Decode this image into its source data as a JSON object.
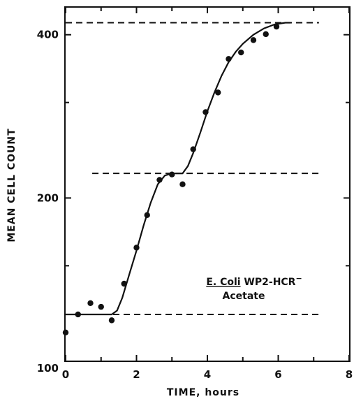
{
  "chart_data": {
    "type": "scatter",
    "xlabel": "TIME, hours",
    "ylabel": "MEAN CELL COUNT",
    "xlim": [
      0,
      8
    ],
    "ylim": [
      100,
      450
    ],
    "y_scale": "log",
    "x_ticks": [
      "0",
      "2",
      "4",
      "6",
      "8"
    ],
    "y_ticks": [
      "100",
      "200",
      "400"
    ],
    "annotation_line1_prefix": "E. Coli",
    "annotation_line1_suffix": " WP2-HCR",
    "annotation_line1_superscript": "−",
    "annotation_line2": "Acetate",
    "points": [
      {
        "x": 0.0,
        "y": 113
      },
      {
        "x": 0.35,
        "y": 122
      },
      {
        "x": 0.7,
        "y": 128
      },
      {
        "x": 1.0,
        "y": 126
      },
      {
        "x": 1.3,
        "y": 119
      },
      {
        "x": 1.65,
        "y": 139
      },
      {
        "x": 2.0,
        "y": 162
      },
      {
        "x": 2.3,
        "y": 186
      },
      {
        "x": 2.65,
        "y": 216
      },
      {
        "x": 3.0,
        "y": 221
      },
      {
        "x": 3.3,
        "y": 212
      },
      {
        "x": 3.6,
        "y": 246
      },
      {
        "x": 3.95,
        "y": 288
      },
      {
        "x": 4.3,
        "y": 313
      },
      {
        "x": 4.6,
        "y": 361
      },
      {
        "x": 4.95,
        "y": 371
      },
      {
        "x": 5.3,
        "y": 391
      },
      {
        "x": 5.65,
        "y": 401
      },
      {
        "x": 5.95,
        "y": 414
      }
    ],
    "fit_curve": [
      {
        "x": 0.0,
        "y": 122
      },
      {
        "x": 1.3,
        "y": 122
      },
      {
        "x": 1.45,
        "y": 124
      },
      {
        "x": 1.6,
        "y": 131
      },
      {
        "x": 1.8,
        "y": 145
      },
      {
        "x": 2.0,
        "y": 160
      },
      {
        "x": 2.2,
        "y": 178
      },
      {
        "x": 2.4,
        "y": 196
      },
      {
        "x": 2.6,
        "y": 212
      },
      {
        "x": 2.8,
        "y": 220
      },
      {
        "x": 3.0,
        "y": 222
      },
      {
        "x": 3.3,
        "y": 222
      },
      {
        "x": 3.45,
        "y": 229
      },
      {
        "x": 3.6,
        "y": 242
      },
      {
        "x": 3.8,
        "y": 264
      },
      {
        "x": 4.0,
        "y": 289
      },
      {
        "x": 4.2,
        "y": 313
      },
      {
        "x": 4.4,
        "y": 336
      },
      {
        "x": 4.6,
        "y": 356
      },
      {
        "x": 4.8,
        "y": 372
      },
      {
        "x": 5.0,
        "y": 385
      },
      {
        "x": 5.3,
        "y": 400
      },
      {
        "x": 5.6,
        "y": 411
      },
      {
        "x": 5.9,
        "y": 418
      },
      {
        "x": 6.2,
        "y": 421
      },
      {
        "x": 6.35,
        "y": 421
      }
    ],
    "plateau_levels": [
      122,
      222,
      421
    ],
    "plateau_x_range": [
      0.75,
      7.15
    ],
    "upper_plateau_x_range": [
      0.0,
      7.15
    ]
  }
}
